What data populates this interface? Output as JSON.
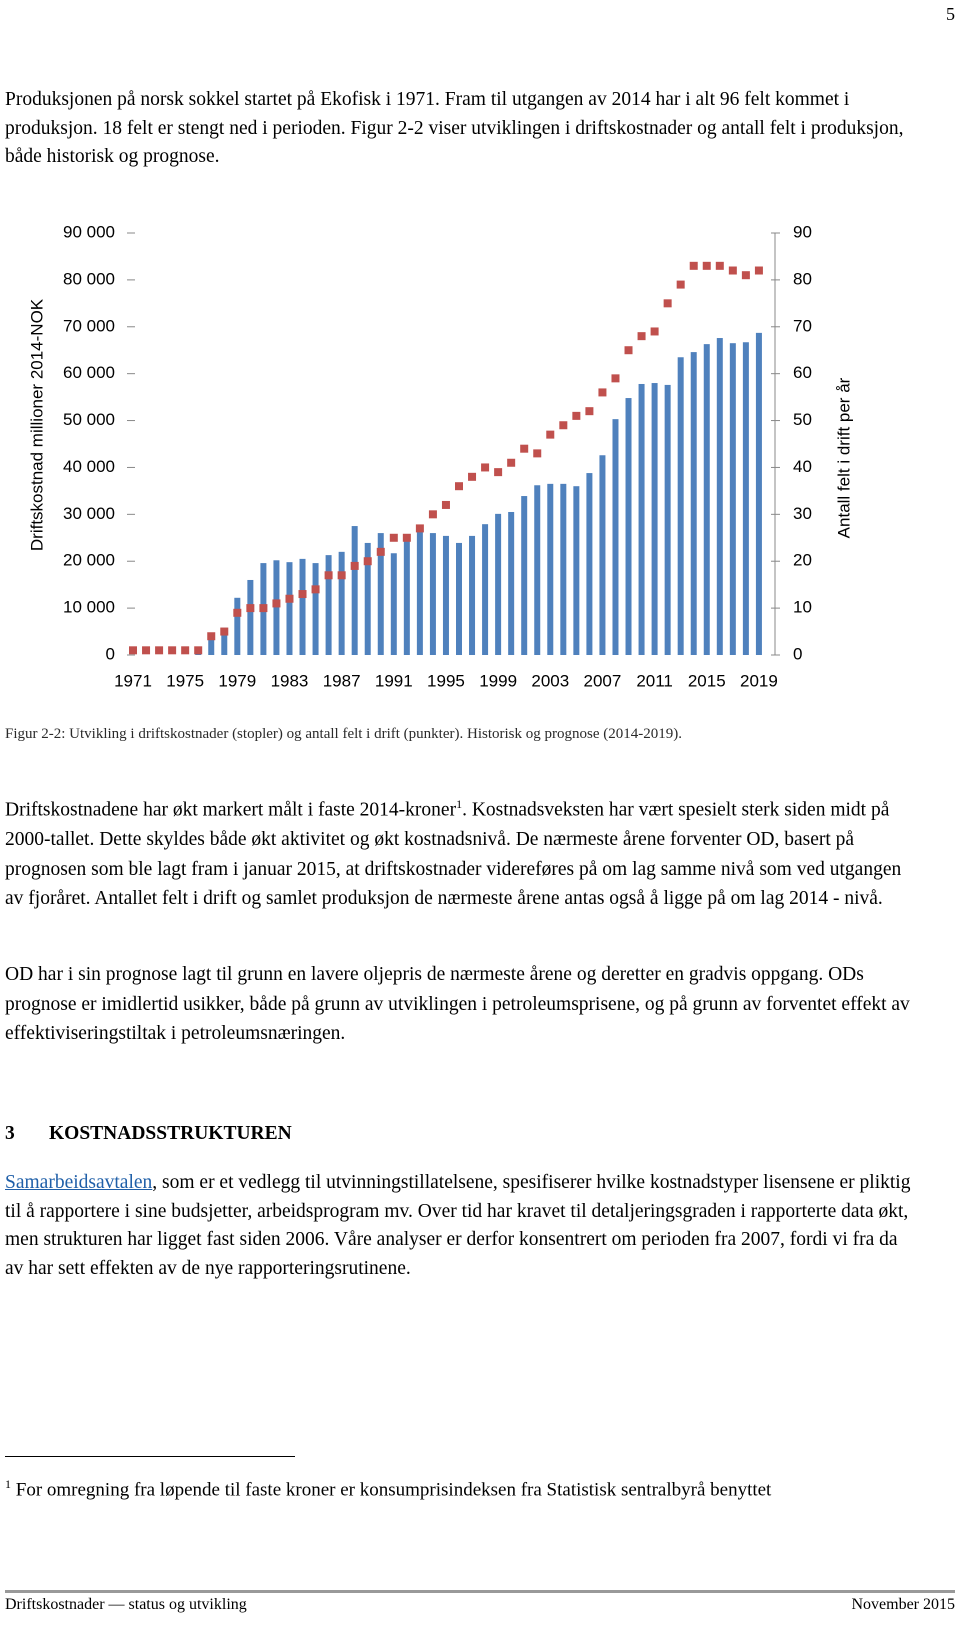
{
  "page_number": "5",
  "intro": "Produksjonen på norsk sokkel startet på Ekofisk i 1971. Fram til utgangen av 2014 har i alt 96 felt kommet i produksjon. 18 felt er stengt ned i perioden. Figur 2-2 viser utviklingen i driftskostnader og antall felt i produksjon, både historisk og prognose.",
  "chart_data": {
    "type": "bar_point",
    "y_label": "Driftskostnad millioner 2014-NOK",
    "y2_label": "Antall felt i drift per år",
    "categories": [
      "1971",
      null,
      null,
      null,
      "1975",
      null,
      null,
      null,
      "1979",
      null,
      null,
      null,
      "1983",
      null,
      null,
      null,
      "1987",
      null,
      null,
      null,
      "1991",
      null,
      null,
      null,
      "1995",
      null,
      null,
      null,
      "1999",
      null,
      null,
      null,
      "2003",
      null,
      null,
      null,
      "2007",
      null,
      null,
      null,
      "2011",
      null,
      null,
      null,
      "2015",
      null,
      null,
      null,
      "2019"
    ],
    "series": [
      {
        "kind": "bar",
        "color": "#4f81bd",
        "values": [
          0,
          0,
          0,
          0,
          0,
          1000,
          3600,
          5800,
          12200,
          16000,
          19600,
          20200,
          19800,
          20500,
          19600,
          21300,
          22000,
          27500,
          23900,
          26000,
          21700,
          25400,
          26900,
          26000,
          25400,
          23900,
          25400,
          27900,
          30100,
          30500,
          33900,
          36200,
          36500,
          36500,
          36000,
          38800,
          42600,
          50300,
          54800,
          57800,
          58000,
          57600,
          63500,
          64600,
          66300,
          67600,
          66500,
          66700,
          68700
        ]
      },
      {
        "kind": "point",
        "axis": "y2",
        "color": "#c0504d",
        "values": [
          1,
          1,
          1,
          1,
          1,
          1,
          4,
          5,
          9,
          10,
          10,
          11,
          12,
          13,
          14,
          17,
          17,
          19,
          20,
          22,
          25,
          25,
          27,
          30,
          32,
          36,
          38,
          40,
          39,
          41,
          44,
          43,
          47,
          49,
          51,
          52,
          56,
          59,
          65,
          68,
          69,
          75,
          79,
          83,
          83,
          83,
          82,
          81,
          82
        ]
      }
    ],
    "ylim": [
      0,
      90000
    ],
    "yticks": [
      0,
      {
        "value": 10000,
        "label": "10 000"
      },
      {
        "value": 20000,
        "label": "20 000"
      },
      {
        "value": 30000,
        "label": "30 000"
      },
      {
        "value": 40000,
        "label": "40 000"
      },
      {
        "value": 50000,
        "label": "50 000"
      },
      {
        "value": 60000,
        "label": "60 000"
      },
      {
        "value": 70000,
        "label": "70 000"
      },
      {
        "value": 80000,
        "label": "80 000"
      },
      {
        "value": 90000,
        "label": "90 000"
      }
    ],
    "y2lim": [
      0,
      90
    ],
    "y2ticks": [
      0,
      10,
      20,
      30,
      40,
      50,
      60,
      70,
      80,
      90
    ],
    "grid": false
  },
  "caption": "Figur 2-2: Utvikling i driftskostnader (stopler) og antall felt i drift (punkter). Historisk og prognose (2014-2019).",
  "p2": {
    "before": "Driftskostnadene har økt markert målt i faste 2014-kroner",
    "footnote_ref": "1",
    "after": ". Kostnadsveksten har vært spesielt sterk siden midt på 2000-tallet. Dette skyldes både økt aktivitet og økt kostnadsnivå. De nærmeste årene forventer OD, basert på prognosen som ble lagt fram i januar 2015, at driftskostnader videreføres på om lag samme nivå som ved utgangen av fjoråret. Antallet felt i drift og samlet produksjon de nærmeste årene antas også å ligge på om lag 2014 - nivå."
  },
  "p3": "OD har i sin prognose lagt til grunn en lavere oljepris de nærmeste årene og deretter en gradvis oppgang. ODs prognose er imidlertid usikker, både på grunn av utviklingen i petroleumsprisene, og på grunn av forventet effekt av effektiviseringstiltak i petroleumsnæringen.",
  "heading": {
    "number": "3",
    "title": "KOSTNADSSTRUKTUREN"
  },
  "p4": {
    "link": "Samarbeidsavtalen",
    "text": ", som er et vedlegg til utvinningstillatelsene, spesifiserer hvilke kostnadstyper lisensene er pliktig til å rapportere i sine budsjetter, arbeidsprogram mv. Over tid har kravet til detaljeringsgraden i rapporterte data økt, men strukturen har ligget fast siden 2006. Våre analyser er derfor konsentrert om perioden fra 2007, fordi vi fra da av har sett effekten av de nye rapporteringsrutinene."
  },
  "footnote": {
    "marker": "1",
    "text": "For omregning fra løpende til faste kroner er konsumprisindeksen fra Statistisk sentralbyrå benyttet"
  },
  "footer": {
    "left": "Driftskostnader — status og utvikling",
    "right": "November 2015"
  }
}
